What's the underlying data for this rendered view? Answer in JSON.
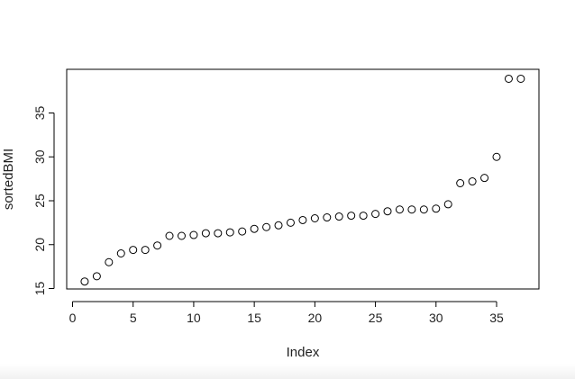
{
  "chart_data": {
    "type": "scatter",
    "title": "",
    "xlabel": "Index",
    "ylabel": "sortedBMI",
    "xlim": [
      0,
      38
    ],
    "ylim": [
      15,
      40
    ],
    "grid": false,
    "legend": "none",
    "point_style": "open-circle",
    "colors": {
      "points": "#000000",
      "axis": "#000000",
      "background": "#ffffff"
    },
    "x_ticks": [
      0,
      5,
      10,
      15,
      20,
      25,
      30,
      35
    ],
    "y_ticks": [
      15,
      20,
      25,
      30,
      35
    ],
    "x": [
      1,
      2,
      3,
      4,
      5,
      6,
      7,
      8,
      9,
      10,
      11,
      12,
      13,
      14,
      15,
      16,
      17,
      18,
      19,
      20,
      21,
      22,
      23,
      24,
      25,
      26,
      27,
      28,
      29,
      30,
      31,
      32,
      33,
      34,
      35,
      36,
      37
    ],
    "y": [
      15.8,
      16.4,
      18.0,
      19.0,
      19.4,
      19.4,
      19.9,
      21.0,
      21.0,
      21.1,
      21.3,
      21.3,
      21.4,
      21.5,
      21.8,
      22.0,
      22.2,
      22.5,
      22.8,
      23.0,
      23.1,
      23.2,
      23.3,
      23.3,
      23.5,
      23.8,
      24.0,
      24.0,
      24.0,
      24.1,
      24.6,
      27.0,
      27.2,
      27.6,
      30.0,
      38.9,
      38.9
    ]
  }
}
